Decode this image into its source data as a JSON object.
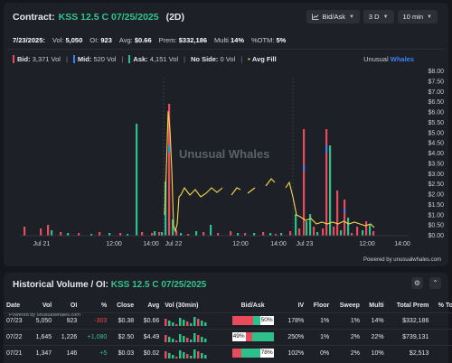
{
  "header": {
    "contract_label": "Contract:",
    "contract": "KSS 12.5 C 07/25/2025",
    "dte": "(2D)"
  },
  "controls": {
    "bidask_label": "Bid/Ask",
    "range_label": "3 D",
    "interval_label": "10 min"
  },
  "stats": {
    "date": "7/23/2025:",
    "vol_label": "Vol:",
    "vol": "5,050",
    "oi_label": "OI:",
    "oi": "923",
    "avg_label": "Avg:",
    "avg": "$0.66",
    "prem_label": "Prem:",
    "prem": "$332,186",
    "multi_label": "Multi",
    "multi": "14%",
    "otm_label": "%OTM:",
    "otm": "5%"
  },
  "legend": {
    "bid_label": "Bid:",
    "bid": "3,371 Vol",
    "mid_label": "Mid:",
    "mid": "520 Vol",
    "ask_label": "Ask:",
    "ask": "4,151 Vol",
    "noside_label": "No Side:",
    "noside": "0 Vol",
    "avgfill_label": "Avg Fill"
  },
  "brand": {
    "part1": "Unusual",
    "part2": "Whales"
  },
  "watermark": "Unusual Whales",
  "powered_by": "Powered by unusualwhales.com",
  "colors": {
    "bid": "#e84b5c",
    "mid": "#3b82f6",
    "ask": "#2fbf8a",
    "avg_fill": "#f6d84b",
    "accent": "#31c48d"
  },
  "chart_data": {
    "type": "bar",
    "title": "",
    "y_ticks": [
      "$8.00",
      "$7.50",
      "$7.00",
      "$6.50",
      "$6.00",
      "$5.50",
      "$5.00",
      "$4.50",
      "$4.00",
      "$3.50",
      "$3.00",
      "$2.50",
      "$2.00",
      "$1.50",
      "$1.00",
      "$0.50",
      "$0.00"
    ],
    "ylim": [
      0,
      8
    ],
    "x_ticks": [
      "Jul 21",
      "12:00",
      "14:00",
      "Jul 22",
      "12:00",
      "14:00",
      "Jul 23",
      "12:00",
      "14:00"
    ],
    "series_labels": [
      "Bid",
      "Mid",
      "Ask",
      "Avg Fill"
    ],
    "grid": false,
    "day_dividers": [
      "Jul 22",
      "Jul 23"
    ]
  },
  "historical": {
    "title_label": "Historical Volume / OI:",
    "contract": "KSS 12.5 C 07/25/2025",
    "watermark": "Powered by unusualwhales.com",
    "columns": [
      "Date",
      "Vol",
      "OI",
      "%",
      "Close",
      "Avg",
      "Vol (30min)",
      "Bid/Ask",
      "IV",
      "Floor",
      "Sweep",
      "Multi",
      "Total Prem",
      "% To"
    ],
    "rows": [
      {
        "date": "07/23",
        "vol": "5,050",
        "oi": "923",
        "chg": "-303",
        "chg_dir": "neg",
        "close": "$0.38",
        "avg": "$0.66",
        "bidask_pct": "50%",
        "bid_frac": 0.42,
        "ask_frac": 0.5,
        "label_side": "ask",
        "iv": "178%",
        "floor": "1%",
        "sweep": "1%",
        "multi": "14%",
        "total_prem": "$332,186",
        "pct_to": ""
      },
      {
        "date": "07/22",
        "vol": "1,645",
        "oi": "1,226",
        "chg": "+1,080",
        "chg_dir": "pos",
        "close": "$2.50",
        "avg": "$4.49",
        "bidask_pct": "49%",
        "bid_frac": 0.49,
        "ask_frac": 0.51,
        "label_side": "bid",
        "iv": "250%",
        "floor": "1%",
        "sweep": "2%",
        "multi": "22%",
        "total_prem": "$739,131",
        "pct_to": ""
      },
      {
        "date": "07/21",
        "vol": "1,347",
        "oi": "146",
        "chg": "+5",
        "chg_dir": "pos",
        "close": "$0.03",
        "avg": "$0.02",
        "bidask_pct": "78%",
        "bid_frac": 0.1,
        "ask_frac": 0.78,
        "label_side": "ask",
        "iv": "102%",
        "floor": "0%",
        "sweep": "2%",
        "multi": "10%",
        "total_prem": "$2,513",
        "pct_to": ""
      }
    ]
  }
}
